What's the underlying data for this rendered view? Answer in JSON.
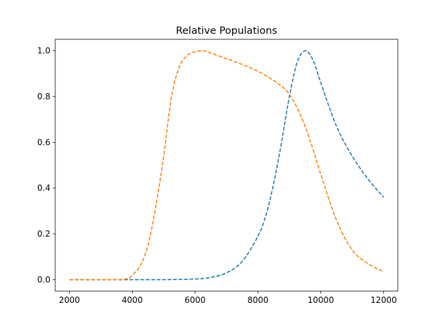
{
  "chart_data": {
    "type": "line",
    "title": "Relative Populations",
    "xlabel": "",
    "ylabel": "",
    "xlim": [
      1550,
      12450
    ],
    "ylim": [
      -0.05,
      1.05
    ],
    "xticks": [
      2000,
      4000,
      6000,
      8000,
      10000,
      12000
    ],
    "xtick_labels": [
      "2000",
      "4000",
      "6000",
      "8000",
      "10000",
      "12000"
    ],
    "yticks": [
      0.0,
      0.2,
      0.4,
      0.6,
      0.8,
      1.0
    ],
    "ytick_labels": [
      "0.0",
      "0.2",
      "0.4",
      "0.6",
      "0.8",
      "1.0"
    ],
    "grid": false,
    "legend": "none",
    "series": [
      {
        "color": "#1f77b4",
        "linestyle": "dashed",
        "x": [
          2000,
          3000,
          4000,
          5000,
          6000,
          6500,
          7000,
          7500,
          8000,
          8250,
          8500,
          8750,
          9000,
          9250,
          9500,
          9750,
          10000,
          10500,
          11000,
          11500,
          12000
        ],
        "y": [
          0.0,
          0.0,
          0.0,
          0.0,
          0.003,
          0.01,
          0.03,
          0.08,
          0.19,
          0.28,
          0.42,
          0.6,
          0.8,
          0.95,
          1.0,
          0.96,
          0.86,
          0.67,
          0.54,
          0.44,
          0.36
        ]
      },
      {
        "color": "#ff7f0e",
        "linestyle": "dashed",
        "x": [
          2000,
          3000,
          3800,
          4000,
          4250,
          4500,
          4750,
          5000,
          5250,
          5500,
          5750,
          6000,
          6250,
          6500,
          7000,
          7500,
          8000,
          8500,
          8800,
          9000,
          9250,
          9500,
          9750,
          10000,
          10500,
          11000,
          11500,
          12000
        ],
        "y": [
          0.0,
          0.0,
          0.003,
          0.02,
          0.06,
          0.15,
          0.32,
          0.54,
          0.8,
          0.93,
          0.98,
          0.995,
          1.0,
          0.99,
          0.965,
          0.94,
          0.91,
          0.87,
          0.84,
          0.81,
          0.75,
          0.67,
          0.57,
          0.46,
          0.26,
          0.13,
          0.07,
          0.035
        ]
      }
    ]
  }
}
